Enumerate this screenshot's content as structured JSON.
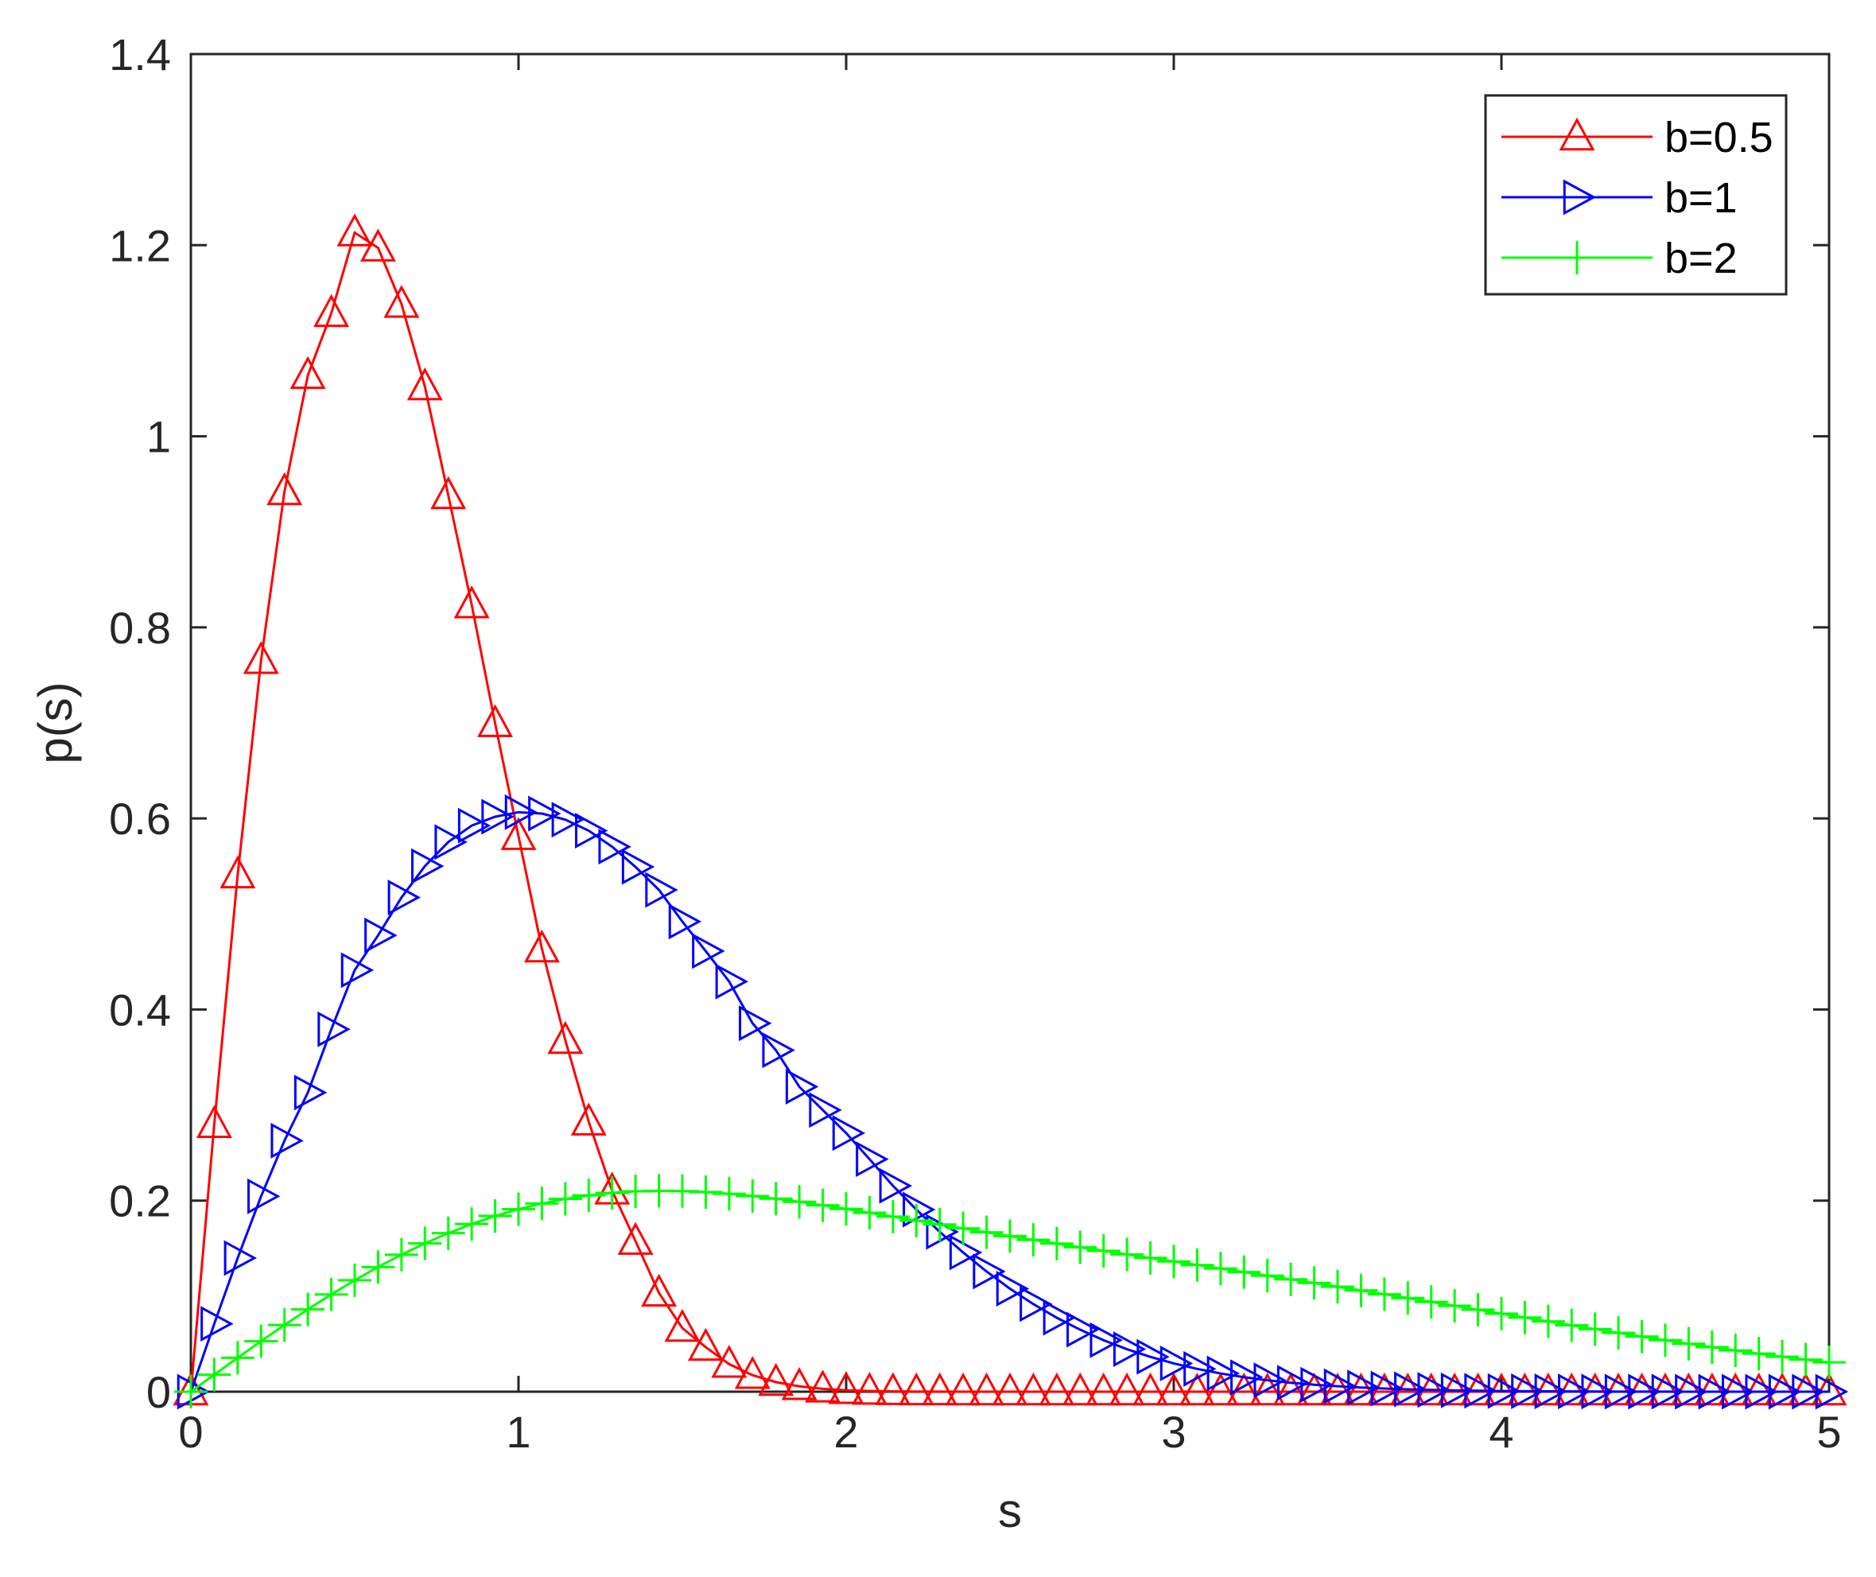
{
  "chart_data": {
    "type": "line",
    "title": "",
    "xlabel": "s",
    "ylabel": "p(s)",
    "xlim": [
      0,
      5
    ],
    "ylim": [
      0,
      1.4
    ],
    "xticks": [
      0,
      1,
      2,
      3,
      4,
      5
    ],
    "xtick_labels": [
      "0",
      "1",
      "2",
      "3",
      "4",
      "5"
    ],
    "yticks": [
      0,
      0.2,
      0.4,
      0.6,
      0.8,
      1,
      1.2,
      1.4
    ],
    "ytick_labels": [
      "0",
      "0.2",
      "0.4",
      "0.6",
      "0.8",
      "1",
      "1.2",
      "1.4"
    ],
    "grid": false,
    "legend_position": "top-right",
    "x": [
      0,
      0.0714,
      0.1429,
      0.2143,
      0.2857,
      0.3571,
      0.4286,
      0.5,
      0.5714,
      0.6429,
      0.7143,
      0.7857,
      0.8571,
      0.9286,
      1,
      1.0714,
      1.1429,
      1.2143,
      1.2857,
      1.3571,
      1.4286,
      1.5,
      1.5714,
      1.6429,
      1.7143,
      1.7857,
      1.8571,
      1.9286,
      2,
      2.0714,
      2.1429,
      2.2143,
      2.2857,
      2.3571,
      2.4286,
      2.5,
      2.5714,
      2.6429,
      2.7143,
      2.7857,
      2.8571,
      2.9286,
      3,
      3.0714,
      3.1429,
      3.2143,
      3.2857,
      3.3571,
      3.4286,
      3.5,
      3.5714,
      3.6429,
      3.7143,
      3.7857,
      3.8571,
      3.9286,
      4,
      4.0714,
      4.1429,
      4.2143,
      4.2857,
      4.3571,
      4.4286,
      4.5,
      4.5714,
      4.6429,
      4.7143,
      4.7857,
      4.8571,
      4.9286,
      5
    ],
    "series": [
      {
        "name": "b=0.5",
        "color": "#ff0000",
        "marker": "triangle-up",
        "values": [
          0,
          0.2799,
          0.5411,
          0.7655,
          0.9422,
          1.0638,
          1.1287,
          1.2131,
          1.1972,
          1.1383,
          1.052,
          0.9381,
          0.8238,
          0.6995,
          0.5813,
          0.4636,
          0.3679,
          0.2825,
          0.2103,
          0.1576,
          0.1034,
          0.0666,
          0.0467,
          0.0289,
          0.0173,
          0.01,
          0.0056,
          0.003,
          0.0015,
          0.0007,
          0.0003,
          0.0001,
          0.0001,
          0,
          0,
          0,
          0,
          0,
          0,
          0,
          0,
          0,
          0,
          0,
          0,
          0,
          0,
          0,
          0,
          0,
          0,
          0,
          0,
          0,
          0,
          0,
          0,
          0,
          0,
          0,
          0,
          0,
          0,
          0,
          0,
          0,
          0,
          0,
          0,
          0,
          0
        ]
      },
      {
        "name": "b=1",
        "color": "#0000ff",
        "marker": "triangle-right",
        "values": [
          0,
          0.0711,
          0.1399,
          0.2045,
          0.2627,
          0.3131,
          0.3793,
          0.4412,
          0.4776,
          0.5173,
          0.5501,
          0.5753,
          0.5925,
          0.6018,
          0.6065,
          0.6051,
          0.5987,
          0.5872,
          0.5704,
          0.5493,
          0.5252,
          0.4921,
          0.4612,
          0.4293,
          0.3856,
          0.3574,
          0.3192,
          0.2948,
          0.2707,
          0.2434,
          0.2155,
          0.1906,
          0.1673,
          0.1457,
          0.1258,
          0.1078,
          0.0917,
          0.0774,
          0.0649,
          0.0539,
          0.0445,
          0.0365,
          0.0296,
          0.0239,
          0.0191,
          0.0152,
          0.012,
          0.0094,
          0.0073,
          0.0057,
          0.0044,
          0.0033,
          0.0025,
          0.0019,
          0.0014,
          0.001,
          0.0007,
          0.0005,
          0.0004,
          0.0003,
          0.0002,
          0.0001,
          0.0001,
          0.0001,
          0,
          0,
          0,
          0,
          0,
          0,
          0
        ]
      },
      {
        "name": "b=2",
        "color": "#00ff00",
        "marker": "plus",
        "values": [
          0,
          0.0178,
          0.0355,
          0.0529,
          0.0698,
          0.0861,
          0.1018,
          0.1166,
          0.1305,
          0.1434,
          0.1552,
          0.1659,
          0.1755,
          0.1839,
          0.191,
          0.197,
          0.2018,
          0.2055,
          0.2081,
          0.2097,
          0.2103,
          0.21,
          0.2089,
          0.2072,
          0.2048,
          0.202,
          0.1987,
          0.1951,
          0.1913,
          0.1873,
          0.1832,
          0.1791,
          0.175,
          0.1709,
          0.1668,
          0.1628,
          0.1589,
          0.155,
          0.1512,
          0.1474,
          0.1437,
          0.14,
          0.1363,
          0.1326,
          0.1289,
          0.1252,
          0.1214,
          0.1176,
          0.1138,
          0.1099,
          0.106,
          0.102,
          0.098,
          0.094,
          0.0899,
          0.0858,
          0.0817,
          0.0776,
          0.0736,
          0.0695,
          0.0655,
          0.0616,
          0.0577,
          0.0539,
          0.0502,
          0.0466,
          0.0432,
          0.0398,
          0.0366,
          0.0336,
          0.0307
        ]
      }
    ]
  }
}
